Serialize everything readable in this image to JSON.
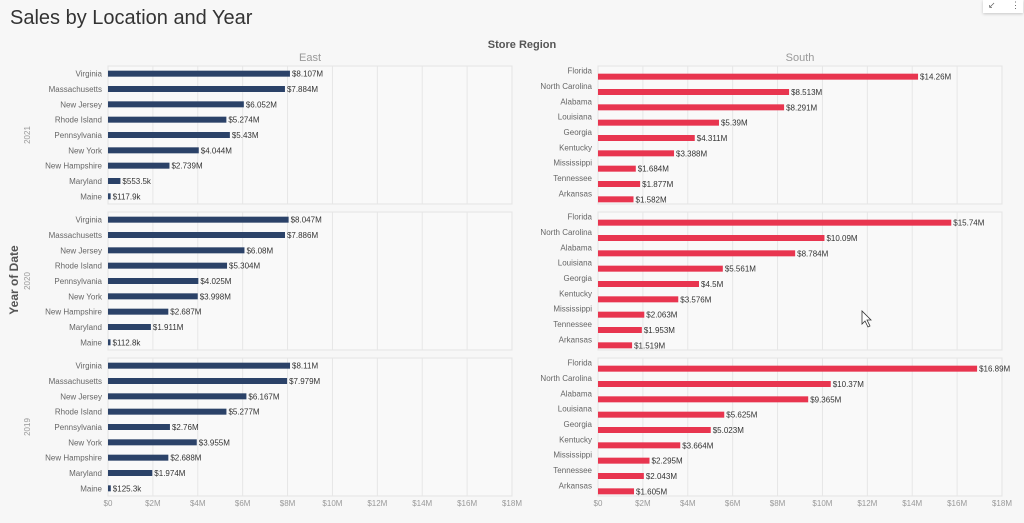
{
  "header": {
    "title": "Sales by Location and Year",
    "icons": [
      "collapse-icon",
      "more-options-icon"
    ]
  },
  "chart_data": {
    "type": "bar",
    "orientation": "horizontal",
    "column_header": "Store Region",
    "row_header": "Year of Date",
    "xlim": [
      0,
      18000000
    ],
    "xticks": [
      "$0",
      "$2M",
      "$4M",
      "$6M",
      "$8M",
      "$10M",
      "$12M",
      "$14M",
      "$16M",
      "$18M"
    ],
    "grid": true,
    "colors": {
      "East": "#2b4268",
      "South": "#e8354f"
    },
    "panels": [
      {
        "region": "East",
        "year": "2021",
        "categories": [
          "Virginia",
          "Massachusetts",
          "New Jersey",
          "Rhode Island",
          "Pennsylvania",
          "New York",
          "New Hampshire",
          "Maryland",
          "Maine"
        ],
        "values": [
          8107000,
          7884000,
          6052000,
          5274000,
          5430000,
          4044000,
          2739000,
          553500,
          117900
        ],
        "labels": [
          "$8.107M",
          "$7.884M",
          "$6.052M",
          "$5.274M",
          "$5.43M",
          "$4.044M",
          "$2.739M",
          "$553.5k",
          "$117.9k"
        ]
      },
      {
        "region": "South",
        "year": "2021",
        "categories": [
          "Florida",
          "North Carolina",
          "Alabama",
          "Louisiana",
          "Georgia",
          "Kentucky",
          "Mississippi",
          "Tennessee",
          "Arkansas"
        ],
        "values": [
          14260000,
          8513000,
          8291000,
          5390000,
          4311000,
          3388000,
          1684000,
          1877000,
          1582000
        ],
        "labels": [
          "$14.26M",
          "$8.513M",
          "$8.291M",
          "$5.39M",
          "$4.311M",
          "$3.388M",
          "$1.684M",
          "$1.877M",
          "$1.582M"
        ]
      },
      {
        "region": "East",
        "year": "2020",
        "categories": [
          "Virginia",
          "Massachusetts",
          "New Jersey",
          "Rhode Island",
          "Pennsylvania",
          "New York",
          "New Hampshire",
          "Maryland",
          "Maine"
        ],
        "values": [
          8047000,
          7886000,
          6080000,
          5304000,
          4025000,
          3998000,
          2687000,
          1911000,
          112800
        ],
        "labels": [
          "$8.047M",
          "$7.886M",
          "$6.08M",
          "$5.304M",
          "$4.025M",
          "$3.998M",
          "$2.687M",
          "$1.911M",
          "$112.8k"
        ]
      },
      {
        "region": "South",
        "year": "2020",
        "categories": [
          "Florida",
          "North Carolina",
          "Alabama",
          "Louisiana",
          "Georgia",
          "Kentucky",
          "Mississippi",
          "Tennessee",
          "Arkansas"
        ],
        "values": [
          15740000,
          10090000,
          8784000,
          5561000,
          4500000,
          3576000,
          2063000,
          1953000,
          1519000
        ],
        "labels": [
          "$15.74M",
          "$10.09M",
          "$8.784M",
          "$5.561M",
          "$4.5M",
          "$3.576M",
          "$2.063M",
          "$1.953M",
          "$1.519M"
        ]
      },
      {
        "region": "East",
        "year": "2019",
        "categories": [
          "Virginia",
          "Massachusetts",
          "New Jersey",
          "Rhode Island",
          "Pennsylvania",
          "New York",
          "New Hampshire",
          "Maryland",
          "Maine"
        ],
        "values": [
          8110000,
          7979000,
          6167000,
          5277000,
          2760000,
          3955000,
          2688000,
          1974000,
          125300
        ],
        "labels": [
          "$8.11M",
          "$7.979M",
          "$6.167M",
          "$5.277M",
          "$2.76M",
          "$3.955M",
          "$2.688M",
          "$1.974M",
          "$125.3k"
        ]
      },
      {
        "region": "South",
        "year": "2019",
        "categories": [
          "Florida",
          "North Carolina",
          "Alabama",
          "Louisiana",
          "Georgia",
          "Kentucky",
          "Mississippi",
          "Tennessee",
          "Arkansas"
        ],
        "values": [
          16890000,
          10370000,
          9365000,
          5625000,
          5023000,
          3664000,
          2295000,
          2043000,
          1605000
        ],
        "labels": [
          "$16.89M",
          "$10.37M",
          "$9.365M",
          "$5.625M",
          "$5.023M",
          "$3.664M",
          "$2.295M",
          "$2.043M",
          "$1.605M"
        ]
      }
    ]
  }
}
